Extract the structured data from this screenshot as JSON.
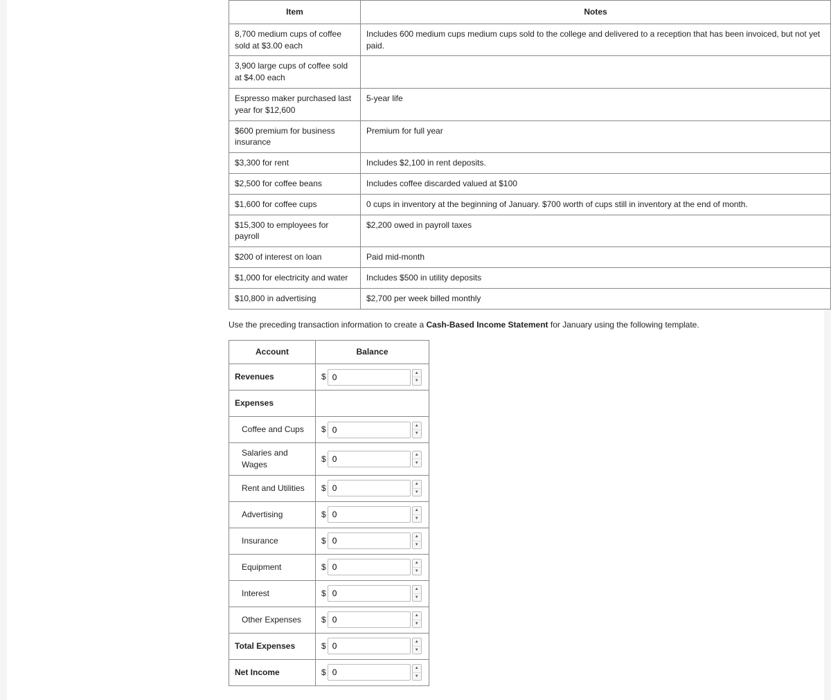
{
  "info_table": {
    "headers": {
      "item": "Item",
      "notes": "Notes"
    },
    "rows": [
      {
        "item": "8,700 medium cups of coffee sold at $3.00 each",
        "notes": "Includes 600 medium cups medium cups sold to the college and delivered to a reception that has been invoiced, but not yet paid."
      },
      {
        "item": "3,900 large cups of coffee sold at $4.00 each",
        "notes": ""
      },
      {
        "item": "Espresso maker purchased last year for $12,600",
        "notes": "5-year life"
      },
      {
        "item": "$600 premium for business insurance",
        "notes": "Premium for full year"
      },
      {
        "item": "$3,300 for rent",
        "notes": "Includes $2,100 in rent deposits."
      },
      {
        "item": "$2,500 for coffee beans",
        "notes": "Includes coffee discarded valued at $100"
      },
      {
        "item": "$1,600 for coffee cups",
        "notes": "0 cups in inventory at the beginning of January.  $700 worth of cups still in inventory at the end of month."
      },
      {
        "item": "$15,300 to employees for payroll",
        "notes": "$2,200 owed in payroll taxes"
      },
      {
        "item": "$200 of interest on loan",
        "notes": "Paid mid-month"
      },
      {
        "item": "$1,000 for electricity and water",
        "notes": "Includes $500 in utility deposits"
      },
      {
        "item": "$10,800 in advertising",
        "notes": "$2,700 per week billed monthly"
      }
    ]
  },
  "instruction_pre": "Use the preceding transaction information to create a ",
  "instruction_bold": "Cash-Based Income Statement",
  "instruction_post": " for January using the following template.",
  "balance_table": {
    "headers": {
      "account": "Account",
      "balance": "Balance"
    },
    "currency_symbol": "$",
    "rows": [
      {
        "label": "Revenues",
        "bold": true,
        "indent": false,
        "has_input": true,
        "value": "0"
      },
      {
        "label": "Expenses",
        "bold": true,
        "indent": false,
        "has_input": false,
        "value": ""
      },
      {
        "label": "Coffee and Cups",
        "bold": false,
        "indent": true,
        "has_input": true,
        "value": "0"
      },
      {
        "label": "Salaries and Wages",
        "bold": false,
        "indent": true,
        "has_input": true,
        "value": "0"
      },
      {
        "label": "Rent and Utilities",
        "bold": false,
        "indent": true,
        "has_input": true,
        "value": "0"
      },
      {
        "label": "Advertising",
        "bold": false,
        "indent": true,
        "has_input": true,
        "value": "0"
      },
      {
        "label": "Insurance",
        "bold": false,
        "indent": true,
        "has_input": true,
        "value": "0"
      },
      {
        "label": "Equipment",
        "bold": false,
        "indent": true,
        "has_input": true,
        "value": "0"
      },
      {
        "label": "Interest",
        "bold": false,
        "indent": true,
        "has_input": true,
        "value": "0"
      },
      {
        "label": "Other Expenses",
        "bold": false,
        "indent": true,
        "has_input": true,
        "value": "0"
      },
      {
        "label": "Total Expenses",
        "bold": true,
        "indent": false,
        "has_input": true,
        "value": "0"
      },
      {
        "label": "Net Income",
        "bold": true,
        "indent": false,
        "has_input": true,
        "value": "0"
      }
    ]
  },
  "colors": {
    "page_bg": "#ffffff",
    "body_bg": "#f5f5f5",
    "border": "#888888",
    "input_border": "#bbbbbb",
    "text": "#222222"
  }
}
